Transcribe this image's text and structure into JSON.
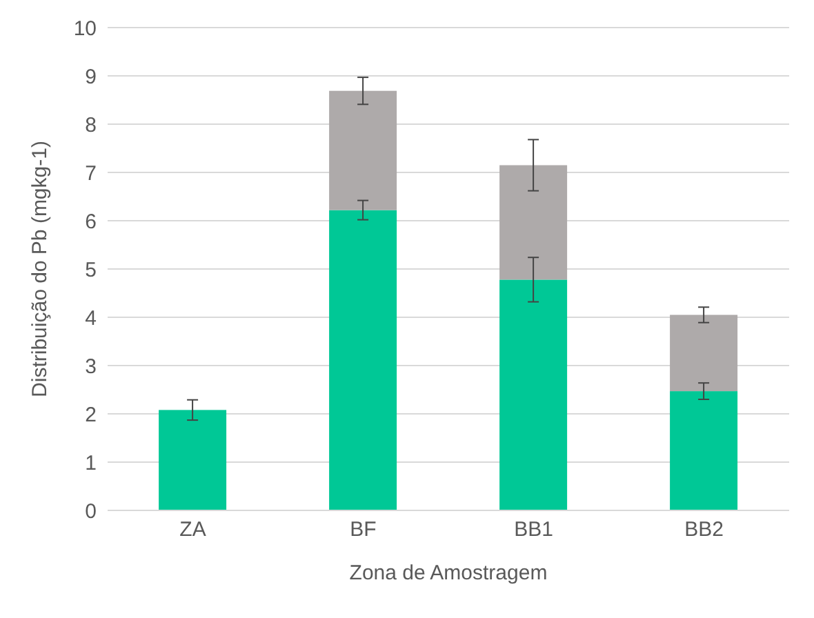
{
  "chart_data": {
    "type": "bar",
    "stacked": true,
    "xlabel": "Zona de Amostragem",
    "ylabel": "Distribuição do Pb (mgkg-1)",
    "categories": [
      "ZA",
      "BF",
      "BB1",
      "BB2"
    ],
    "series": [
      {
        "color": "#00c896",
        "values": [
          2.08,
          6.22,
          4.78,
          2.47
        ],
        "errors": [
          0.21,
          0.2,
          0.46,
          0.17
        ]
      },
      {
        "color": "#aeaaaa",
        "values": [
          null,
          2.47,
          2.37,
          1.58
        ],
        "errors": [
          null,
          0.28,
          0.53,
          0.16
        ]
      }
    ],
    "ylim": [
      0,
      10
    ],
    "yticks": [
      0,
      1,
      2,
      3,
      4,
      5,
      6,
      7,
      8,
      9,
      10
    ],
    "grid": "y",
    "legend": false
  }
}
